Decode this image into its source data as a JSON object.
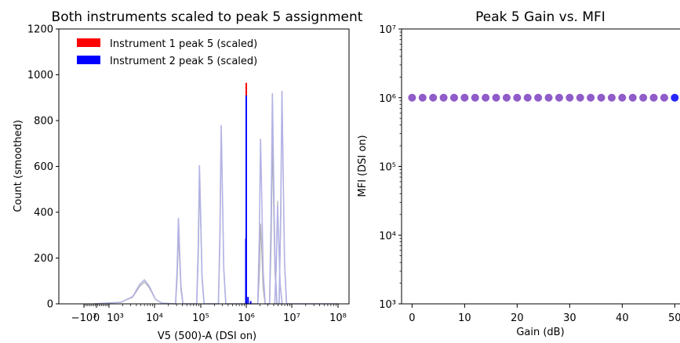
{
  "chart_data": [
    {
      "type": "histogram",
      "title": "Both instruments scaled to peak 5 assignment",
      "xlabel": "V5 (500)-A (DSI on)",
      "ylabel": "Count (smoothed)",
      "xscale": "biexponential (symlog)",
      "ylim": [
        0,
        1200
      ],
      "x_ticks": [
        "−10³",
        "0",
        "10³",
        "10⁴",
        "10⁵",
        "10⁶",
        "10⁷",
        "10⁸"
      ],
      "y_ticks": [
        "0",
        "200",
        "400",
        "600",
        "800",
        "1000",
        "1200"
      ],
      "legend_position": "upper-left",
      "series": [
        {
          "name": "Instrument 1 peak 5 (scaled)",
          "color": "#ff0000"
        },
        {
          "name": "Instrument 2 peak 5 (scaled)",
          "color": "#0000ff"
        }
      ],
      "peak5_bars": [
        {
          "series": "Instrument 1 peak 5 (scaled)",
          "x": 1000000,
          "count": 965,
          "color": "#ff0000"
        },
        {
          "series": "Instrument 2 peak 5 (scaled)",
          "x": 1000000,
          "count": 910,
          "color": "#0000ff"
        },
        {
          "series": "Instrument 2 peak 5 (scaled)",
          "x": 980000,
          "count": 285,
          "color": "#0000ff"
        }
      ],
      "background_peaks": {
        "instrument_1_color": "#aaaaaa",
        "instrument_2_color": "#b3b3e6",
        "peaks": [
          {
            "x": 6000,
            "count_1": 95,
            "count_2": 105
          },
          {
            "x": 35000,
            "count_1": 300,
            "count_2": 375
          },
          {
            "x": 100000,
            "count_1": 530,
            "count_2": 605
          },
          {
            "x": 300000,
            "count_1": 750,
            "count_2": 780
          },
          {
            "x": 2200000,
            "count_1": 350,
            "count_2": 720
          },
          {
            "x": 4000000,
            "count_1": 700,
            "count_2": 920
          },
          {
            "x": 5200000,
            "count_1": 450,
            "count_2": 430
          },
          {
            "x": 6500000,
            "count_1": 930,
            "count_2": 930
          }
        ]
      }
    },
    {
      "type": "scatter",
      "title": "Peak 5 Gain vs. MFI",
      "xlabel": "Gain (dB)",
      "ylabel": "MFI (DSI on)",
      "xlim": [
        -2,
        51
      ],
      "ylim": [
        1000,
        10000000
      ],
      "yscale": "log",
      "x_ticks": [
        "0",
        "10",
        "20",
        "30",
        "40",
        "50"
      ],
      "y_ticks": [
        "10³",
        "10⁴",
        "10⁵",
        "10⁶",
        "10⁷"
      ],
      "point_color": "#7b3fbf",
      "highlight_color": "#0000ff",
      "points": [
        {
          "x": 0,
          "y": 1000000
        },
        {
          "x": 2,
          "y": 1000000
        },
        {
          "x": 4,
          "y": 1000000
        },
        {
          "x": 6,
          "y": 1000000
        },
        {
          "x": 8,
          "y": 1000000
        },
        {
          "x": 10,
          "y": 1000000
        },
        {
          "x": 12,
          "y": 1000000
        },
        {
          "x": 14,
          "y": 1000000
        },
        {
          "x": 16,
          "y": 1000000
        },
        {
          "x": 18,
          "y": 1000000
        },
        {
          "x": 20,
          "y": 1000000
        },
        {
          "x": 22,
          "y": 1000000
        },
        {
          "x": 24,
          "y": 1000000
        },
        {
          "x": 26,
          "y": 1000000
        },
        {
          "x": 28,
          "y": 1000000
        },
        {
          "x": 30,
          "y": 1000000
        },
        {
          "x": 32,
          "y": 1000000
        },
        {
          "x": 34,
          "y": 1000000
        },
        {
          "x": 36,
          "y": 1000000
        },
        {
          "x": 38,
          "y": 1000000
        },
        {
          "x": 40,
          "y": 1000000
        },
        {
          "x": 42,
          "y": 1000000
        },
        {
          "x": 44,
          "y": 1000000
        },
        {
          "x": 46,
          "y": 1000000
        },
        {
          "x": 48,
          "y": 1000000
        },
        {
          "x": 50,
          "y": 1000000,
          "highlight": true
        }
      ]
    }
  ]
}
